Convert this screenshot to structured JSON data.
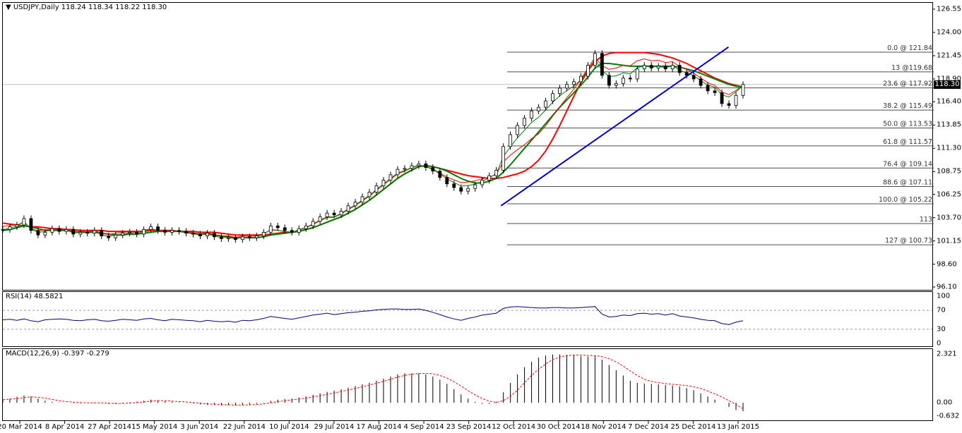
{
  "header": {
    "symbol": "USDJPY,Daily",
    "ohlc": "118.24 118.34 118.22 118.30",
    "dropdown_icon": "triangle-down-icon"
  },
  "chart_data": [
    {
      "type": "line",
      "name": "price",
      "title": "USDJPY,Daily",
      "current_price": "118.30",
      "ylim": [
        96.1,
        126.55
      ],
      "y_ticks": [
        "126.55",
        "124.00",
        "121.45",
        "118.90",
        "116.40",
        "113.85",
        "111.30",
        "108.75",
        "106.25",
        "103.70",
        "101.15",
        "98.60",
        "96.10"
      ],
      "x_ticks": [
        "20 Mar 2014",
        "8 Apr 2014",
        "27 Apr 2014",
        "15 May 2014",
        "3 Jun 2014",
        "22 Jun 2014",
        "10 Jul 2014",
        "29 Jul 2014",
        "17 Aug 2014",
        "4 Sep 2014",
        "23 Sep 2014",
        "12 Oct 2014",
        "30 Oct 2014",
        "18 Nov 2014",
        "7 Dec 2014",
        "25 Dec 2014",
        "13 Jan 2015"
      ],
      "close_series": [
        102.4,
        102.7,
        102.9,
        103.6,
        102.3,
        101.8,
        102.1,
        102.5,
        102.2,
        102.4,
        101.9,
        102.1,
        102.0,
        102.3,
        101.7,
        101.5,
        101.8,
        102.0,
        102.1,
        101.9,
        102.4,
        102.7,
        102.3,
        102.1,
        102.3,
        102.2,
        102.0,
        101.9,
        101.7,
        102.0,
        101.6,
        101.4,
        101.5,
        101.3,
        101.6,
        101.5,
        101.7,
        102.1,
        102.8,
        102.6,
        102.3,
        102.1,
        102.5,
        102.8,
        103.3,
        103.8,
        104.2,
        104.0,
        104.4,
        105.0,
        105.4,
        106.0,
        106.5,
        107.2,
        107.8,
        108.4,
        109.0,
        109.1,
        109.4,
        109.6,
        109.2,
        108.8,
        108.1,
        107.4,
        107.0,
        106.6,
        106.9,
        107.3,
        107.8,
        108.3,
        108.9,
        111.5,
        112.8,
        113.8,
        114.6,
        115.4,
        115.8,
        116.5,
        117.3,
        117.9,
        118.3,
        118.6,
        119.2,
        120.4,
        121.7,
        119.3,
        118.2,
        118.4,
        119.0,
        118.9,
        120.0,
        120.4,
        120.1,
        120.3,
        120.0,
        120.4,
        119.6,
        119.3,
        118.9,
        118.2,
        117.6,
        117.4,
        116.2,
        116.0,
        117.1,
        118.3
      ],
      "ma_green_thick": [
        102.3,
        102.4,
        102.6,
        102.8,
        102.7,
        102.5,
        102.3,
        102.3,
        102.3,
        102.3,
        102.2,
        102.1,
        102.1,
        102.1,
        102.0,
        101.9,
        101.8,
        101.8,
        101.9,
        101.9,
        102.0,
        102.1,
        102.2,
        102.2,
        102.2,
        102.2,
        102.1,
        102.0,
        101.9,
        101.9,
        101.8,
        101.7,
        101.6,
        101.5,
        101.5,
        101.5,
        101.5,
        101.6,
        101.8,
        101.9,
        102.0,
        102.1,
        102.2,
        102.4,
        102.6,
        102.9,
        103.2,
        103.5,
        103.8,
        104.2,
        104.6,
        105.1,
        105.6,
        106.2,
        106.8,
        107.4,
        108.0,
        108.5,
        108.9,
        109.3,
        109.4,
        109.3,
        109.1,
        108.8,
        108.4,
        108.0,
        107.7,
        107.5,
        107.5,
        107.7,
        108.0,
        108.7,
        109.5,
        110.4,
        111.3,
        112.2,
        113.1,
        114.0,
        114.9,
        115.8,
        116.6,
        117.4,
        118.2,
        119.1,
        120.1,
        120.6,
        120.6,
        120.5,
        120.4,
        120.3,
        120.3,
        120.3,
        120.3,
        120.3,
        120.3,
        120.3,
        120.2,
        120.0,
        119.8,
        119.5,
        119.2,
        118.9,
        118.6,
        118.3,
        118.1,
        118.0
      ],
      "ma_red_thick": [
        103.1,
        103.0,
        102.9,
        102.8,
        102.7,
        102.7,
        102.6,
        102.5,
        102.5,
        102.4,
        102.4,
        102.3,
        102.3,
        102.3,
        102.3,
        102.2,
        102.2,
        102.2,
        102.2,
        102.2,
        102.2,
        102.3,
        102.3,
        102.3,
        102.3,
        102.2,
        102.2,
        102.2,
        102.1,
        102.1,
        102.1,
        102.0,
        101.9,
        101.8,
        101.8,
        101.8,
        101.8,
        101.8,
        101.9,
        102.0,
        102.1,
        102.1,
        102.2,
        102.4,
        102.6,
        102.9,
        103.2,
        103.5,
        103.8,
        104.2,
        104.6,
        105.1,
        105.6,
        106.2,
        106.8,
        107.4,
        108.0,
        108.5,
        108.9,
        109.3,
        109.4,
        109.3,
        109.1,
        108.9,
        108.7,
        108.5,
        108.3,
        108.2,
        108.1,
        108.0,
        108.0,
        108.1,
        108.3,
        108.5,
        108.8,
        109.3,
        110.0,
        111.0,
        112.3,
        113.8,
        115.4,
        117.0,
        118.5,
        119.8,
        120.8,
        121.4,
        121.7,
        121.8,
        121.8,
        121.8,
        121.8,
        121.8,
        121.7,
        121.6,
        121.4,
        121.2,
        120.9,
        120.6,
        120.2,
        119.8,
        119.4,
        119.0,
        118.7,
        118.4,
        118.2,
        118.0
      ],
      "trendline": {
        "from": [
          0.532,
          105.0
        ],
        "to": [
          0.775,
          122.4
        ],
        "color": "#0000cc"
      },
      "fibonacci": [
        {
          "label": "0.0 @ 121.84",
          "value": 121.84
        },
        {
          "label": "13 @119.68",
          "value": 119.68
        },
        {
          "label": "23.6 @ 117.92",
          "value": 117.92
        },
        {
          "label": "38.2 @ 115.49",
          "value": 115.49
        },
        {
          "label": "50.0 @ 113.53",
          "value": 113.53
        },
        {
          "label": "61.8 @ 111.57",
          "value": 111.57
        },
        {
          "label": "76.4 @ 109.14",
          "value": 109.14
        },
        {
          "label": "88.6 @ 107.11",
          "value": 107.11
        },
        {
          "label": "100.0 @ 105.22",
          "value": 105.22
        },
        {
          "label": "113",
          "value": 103.06
        },
        {
          "label": "127 @ 100.73",
          "value": 100.73
        }
      ],
      "colors": {
        "ma_green": "#008000",
        "ma_red": "#ff0000",
        "ma_yellow": "#ffcc00",
        "trend": "#0000cc",
        "fib": "#4d4d4d"
      }
    },
    {
      "type": "line",
      "name": "rsi",
      "title": "RSI(14) 48.5821",
      "ylim": [
        0,
        100
      ],
      "y_ticks": [
        "100",
        "70",
        "30",
        "0"
      ],
      "levels": [
        70,
        30
      ],
      "values": [
        50,
        51,
        49,
        52,
        48,
        46,
        50,
        51,
        52,
        51,
        49,
        48,
        50,
        51,
        48,
        47,
        49,
        51,
        50,
        49,
        52,
        53,
        50,
        48,
        51,
        50,
        49,
        48,
        46,
        49,
        47,
        46,
        47,
        45,
        49,
        48,
        50,
        53,
        57,
        55,
        53,
        51,
        54,
        57,
        60,
        62,
        64,
        61,
        63,
        65,
        66,
        68,
        69,
        71,
        72,
        73,
        73,
        72,
        72,
        73,
        70,
        66,
        61,
        56,
        52,
        49,
        53,
        56,
        60,
        62,
        64,
        74,
        77,
        78,
        77,
        76,
        75,
        75,
        76,
        76,
        75,
        75,
        76,
        77,
        78,
        62,
        56,
        57,
        60,
        59,
        63,
        64,
        62,
        63,
        60,
        63,
        58,
        56,
        54,
        51,
        49,
        48,
        42,
        40,
        45,
        48
      ]
    },
    {
      "type": "bar",
      "name": "macd",
      "title": "MACD(12,26,9) -0.397 -0.279",
      "ylim": [
        -0.632,
        2.321
      ],
      "y_ticks": [
        "2.321",
        "0.00",
        "-0.632"
      ],
      "histogram": [
        0.15,
        0.2,
        0.28,
        0.35,
        0.3,
        0.2,
        0.1,
        0.05,
        0.02,
        0.0,
        -0.02,
        -0.03,
        0.0,
        0.02,
        0.0,
        -0.05,
        -0.05,
        -0.02,
        0.02,
        0.05,
        0.1,
        0.15,
        0.12,
        0.08,
        0.05,
        0.02,
        0.0,
        -0.03,
        -0.08,
        -0.1,
        -0.1,
        -0.12,
        -0.12,
        -0.12,
        -0.1,
        -0.08,
        -0.05,
        0.02,
        0.1,
        0.15,
        0.18,
        0.2,
        0.25,
        0.3,
        0.38,
        0.45,
        0.52,
        0.58,
        0.64,
        0.72,
        0.8,
        0.88,
        0.96,
        1.05,
        1.15,
        1.25,
        1.35,
        1.4,
        1.4,
        1.4,
        1.35,
        1.25,
        1.1,
        0.9,
        0.65,
        0.4,
        0.2,
        0.05,
        -0.05,
        -0.05,
        0.05,
        0.5,
        0.95,
        1.35,
        1.7,
        1.95,
        2.15,
        2.25,
        2.3,
        2.3,
        2.28,
        2.25,
        2.22,
        2.2,
        2.25,
        2.05,
        1.8,
        1.55,
        1.3,
        1.05,
        0.95,
        0.92,
        0.9,
        0.88,
        0.85,
        0.82,
        0.78,
        0.7,
        0.6,
        0.45,
        0.3,
        0.15,
        0.0,
        -0.2,
        -0.35,
        -0.4
      ],
      "signal": [
        0.15,
        0.17,
        0.2,
        0.25,
        0.28,
        0.26,
        0.22,
        0.16,
        0.1,
        0.06,
        0.03,
        0.01,
        0.0,
        0.0,
        0.0,
        -0.02,
        -0.03,
        -0.03,
        -0.01,
        0.01,
        0.04,
        0.08,
        0.1,
        0.1,
        0.08,
        0.06,
        0.04,
        0.01,
        -0.02,
        -0.05,
        -0.07,
        -0.09,
        -0.1,
        -0.11,
        -0.11,
        -0.1,
        -0.08,
        -0.05,
        0.0,
        0.05,
        0.1,
        0.14,
        0.18,
        0.22,
        0.28,
        0.34,
        0.4,
        0.47,
        0.54,
        0.61,
        0.68,
        0.76,
        0.84,
        0.93,
        1.02,
        1.12,
        1.22,
        1.3,
        1.36,
        1.39,
        1.4,
        1.38,
        1.3,
        1.18,
        1.0,
        0.8,
        0.58,
        0.38,
        0.2,
        0.08,
        0.02,
        0.1,
        0.3,
        0.6,
        0.95,
        1.3,
        1.6,
        1.85,
        2.05,
        2.18,
        2.25,
        2.27,
        2.27,
        2.25,
        2.24,
        2.2,
        2.1,
        1.95,
        1.75,
        1.52,
        1.3,
        1.12,
        1.02,
        0.96,
        0.92,
        0.88,
        0.85,
        0.82,
        0.76,
        0.68,
        0.56,
        0.42,
        0.28,
        0.1,
        -0.08,
        -0.28
      ],
      "colors": {
        "signal": "#ff0000",
        "histogram": "#000000"
      }
    }
  ]
}
